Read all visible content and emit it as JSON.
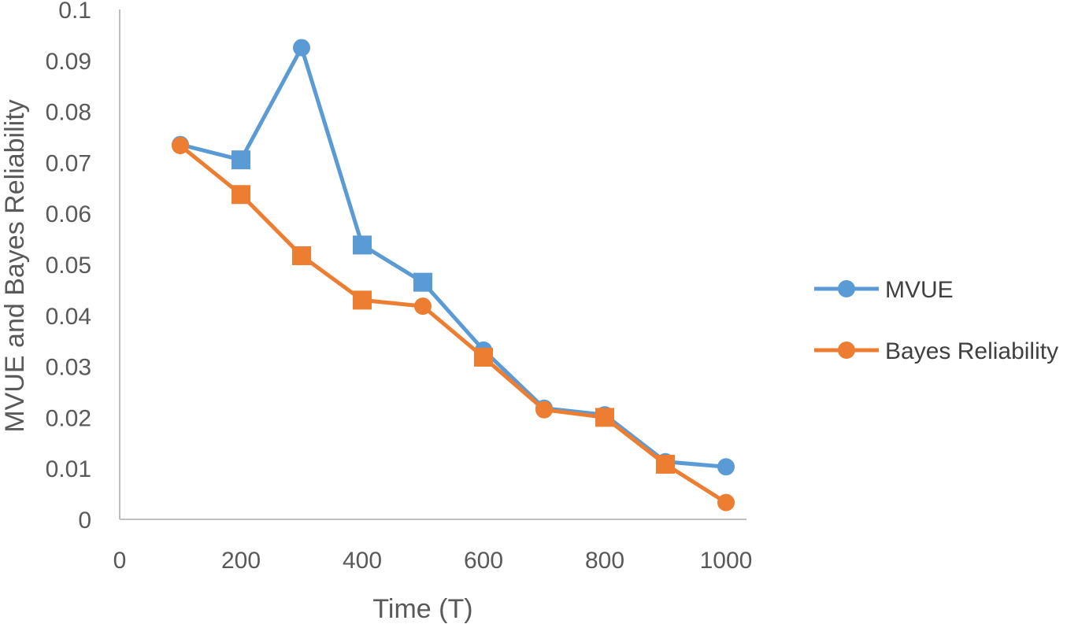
{
  "chart_data": {
    "type": "line",
    "title": "",
    "xlabel": "Time (T)",
    "ylabel": "MVUE and Bayes Reliability",
    "xlim": [
      0,
      1000
    ],
    "ylim": [
      0,
      0.1
    ],
    "x_ticks": [
      "0",
      "200",
      "400",
      "600",
      "800",
      "1000"
    ],
    "y_ticks": [
      "0",
      "0.01",
      "0.02",
      "0.03",
      "0.04",
      "0.05",
      "0.06",
      "0.07",
      "0.08",
      "0.09",
      "0.1"
    ],
    "grid": false,
    "legend_position": "right",
    "x": [
      100,
      200,
      300,
      400,
      500,
      600,
      700,
      800,
      900,
      1000
    ],
    "series": [
      {
        "name": "MVUE",
        "color": "#5B9BD5",
        "markers": [
          "circle",
          "square",
          "circle",
          "square",
          "square",
          "circle",
          "circle",
          "circle",
          "circle",
          "circle"
        ],
        "values": [
          0.0735,
          0.0705,
          0.0925,
          0.0538,
          0.0465,
          0.0332,
          0.0218,
          0.0205,
          0.0113,
          0.0103
        ]
      },
      {
        "name": "Bayes Reliability",
        "color": "#ED7D31",
        "markers": [
          "circle",
          "square",
          "square",
          "square",
          "circle",
          "square",
          "circle",
          "square",
          "square",
          "circle"
        ],
        "values": [
          0.0733,
          0.0637,
          0.0517,
          0.043,
          0.0418,
          0.0318,
          0.0215,
          0.02,
          0.0108,
          0.0033
        ]
      }
    ]
  }
}
